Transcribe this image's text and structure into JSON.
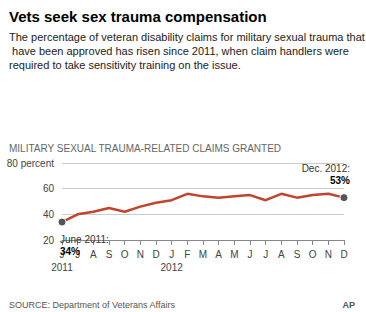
{
  "chart_data": {
    "type": "line",
    "title": "Vets seek sex trauma compensation",
    "subtitle": "The percentage of veteran disability claims for military sexual trauma that have been approved has risen since 2011, when claim handlers were required to take sensitivity training on the issue.",
    "ylabel": "MILITARY SEXUAL TRAUMA-RELATED CLAIMS GRANTED",
    "source": "SOURCE: Department of Veterans Affairs",
    "credit": "AP",
    "categories": [
      "J\n2011",
      "J",
      "A",
      "S",
      "O",
      "N",
      "D",
      "J\n2012",
      "F",
      "M",
      "A",
      "M",
      "J",
      "J",
      "A",
      "S",
      "O",
      "N",
      "D"
    ],
    "values": [
      34,
      40,
      42,
      45,
      42,
      46,
      49,
      51,
      56,
      54,
      53,
      54,
      55,
      51,
      56,
      53,
      55,
      56,
      53
    ],
    "value_labels": [
      "June 2011:\n34%",
      null,
      null,
      null,
      null,
      null,
      null,
      null,
      null,
      null,
      null,
      null,
      null,
      null,
      null,
      null,
      null,
      null,
      "Dec. 2012:\n53%"
    ],
    "color": "#c2432e",
    "marker": "circle",
    "ylim": [
      20,
      80
    ],
    "yticks": [
      20,
      40,
      60,
      {
        "value": 80,
        "label": "80 percent"
      }
    ],
    "grid": true
  }
}
